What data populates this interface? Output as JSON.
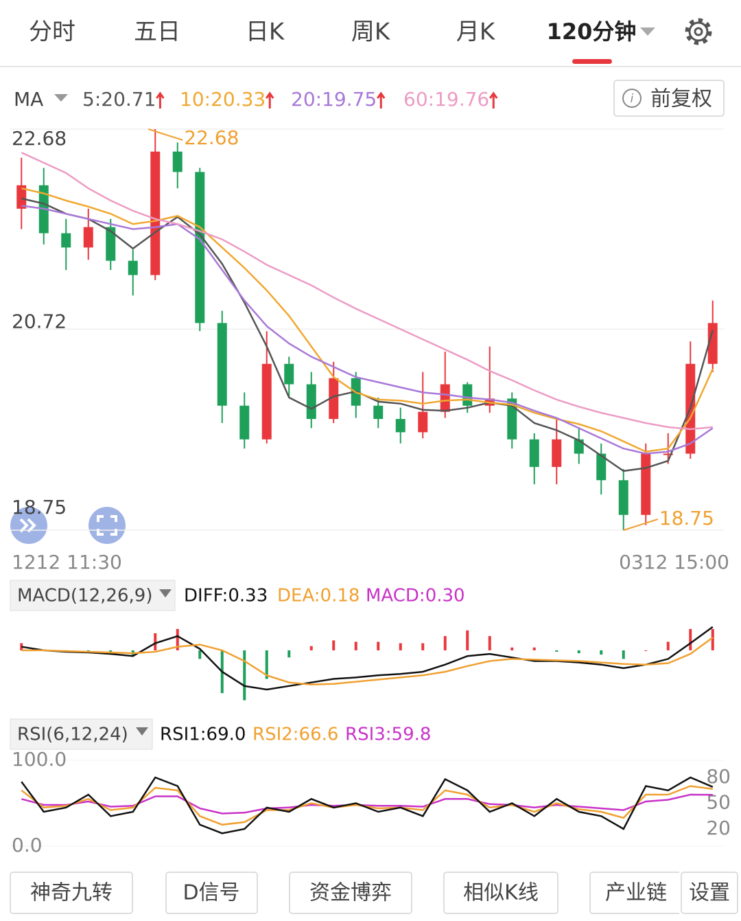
{
  "tabs": [
    "分时",
    "五日",
    "日K",
    "周K",
    "月K",
    "120分钟"
  ],
  "adjust": "前复权",
  "buttons": [
    "神奇九转",
    "D信号",
    "资金博弈",
    "相似K线",
    "产业链",
    "设置"
  ],
  "chart_data": [
    {
      "type": "candlestick",
      "selector": "MA",
      "x_labels": [
        "1212 11:30",
        "0312 15:00"
      ],
      "open": [
        21.9,
        22.13,
        21.66,
        21.52,
        21.72,
        21.39,
        21.25,
        22.46,
        22.26,
        20.78,
        19.97,
        19.64,
        20.38,
        20.18,
        19.84,
        20.24,
        19.97,
        19.84,
        19.71,
        19.91,
        20.18,
        19.97,
        20.04,
        19.64,
        19.37,
        19.64,
        19.5,
        19.24,
        18.9,
        19.5,
        19.5,
        20.38
      ],
      "high": [
        22.4,
        22.3,
        21.8,
        21.9,
        21.8,
        21.5,
        22.68,
        22.55,
        22.3,
        20.9,
        20.1,
        20.7,
        20.45,
        20.3,
        20.4,
        20.3,
        20.05,
        19.95,
        20.3,
        20.5,
        20.2,
        20.55,
        20.1,
        19.7,
        19.85,
        19.75,
        19.6,
        19.35,
        19.6,
        19.7,
        20.6,
        21.0
      ],
      "low": [
        21.7,
        21.55,
        21.3,
        21.4,
        21.3,
        21.05,
        21.2,
        22.1,
        20.7,
        19.8,
        19.55,
        19.6,
        20.05,
        19.75,
        19.8,
        19.85,
        19.75,
        19.6,
        19.65,
        19.85,
        19.9,
        19.9,
        19.55,
        19.2,
        19.2,
        19.4,
        19.1,
        18.75,
        18.8,
        19.4,
        19.45,
        20.3
      ],
      "close": [
        22.13,
        21.66,
        21.52,
        21.72,
        21.39,
        21.25,
        22.46,
        22.26,
        20.78,
        19.97,
        19.64,
        20.38,
        20.18,
        19.84,
        20.24,
        19.97,
        19.84,
        19.71,
        19.91,
        20.18,
        19.97,
        20.04,
        19.64,
        19.37,
        19.64,
        19.5,
        19.24,
        18.9,
        19.5,
        19.5,
        20.38,
        20.78
      ],
      "up_color": "#e8383d",
      "down_color": "#1ea05a",
      "series": [
        {
          "name": "5:20.71",
          "color": "#555555",
          "values": [
            22.0,
            21.95,
            21.85,
            21.8,
            21.68,
            21.51,
            21.67,
            21.82,
            21.65,
            21.36,
            20.98,
            20.55,
            20.05,
            19.94,
            20.06,
            20.11,
            20.01,
            19.99,
            19.93,
            19.92,
            19.95,
            20.0,
            19.97,
            19.8,
            19.73,
            19.63,
            19.48,
            19.33,
            19.36,
            19.43,
            19.95,
            20.71
          ]
        },
        {
          "name": "10:20.33",
          "color": "#f0a830",
          "values": [
            22.1,
            22.05,
            21.98,
            21.92,
            21.85,
            21.75,
            21.78,
            21.83,
            21.72,
            21.52,
            21.32,
            21.1,
            20.85,
            20.55,
            20.25,
            20.1,
            20.03,
            20.02,
            19.99,
            20.02,
            20.03,
            20.0,
            19.98,
            19.9,
            19.84,
            19.79,
            19.72,
            19.62,
            19.52,
            19.55,
            19.85,
            20.33
          ]
        },
        {
          "name": "20:19.75",
          "color": "#a878d8",
          "values": [
            21.93,
            21.9,
            21.85,
            21.8,
            21.75,
            21.7,
            21.72,
            21.75,
            21.6,
            21.3,
            21.0,
            20.75,
            20.58,
            20.45,
            20.35,
            20.25,
            20.2,
            20.15,
            20.1,
            20.08,
            20.05,
            20.03,
            20.0,
            19.92,
            19.85,
            19.75,
            19.65,
            19.55,
            19.5,
            19.52,
            19.6,
            19.75
          ]
        },
        {
          "name": "60:19.76",
          "color": "#ec9cc4",
          "values": [
            22.45,
            22.35,
            22.25,
            22.1,
            21.98,
            21.88,
            21.8,
            21.75,
            21.68,
            21.6,
            21.48,
            21.35,
            21.25,
            21.15,
            21.03,
            20.92,
            20.82,
            20.72,
            20.62,
            20.52,
            20.42,
            20.31,
            20.22,
            20.12,
            20.03,
            19.96,
            19.9,
            19.85,
            19.8,
            19.76,
            19.74,
            19.76
          ]
        }
      ],
      "ylim": [
        18.75,
        22.68
      ],
      "yticks": [
        22.68,
        20.72,
        18.75
      ],
      "annotations": [
        "22.68",
        "18.75"
      ],
      "annotation_color": "#f0a030"
    },
    {
      "type": "macd",
      "selector": "MACD(12,26,9)",
      "series": [
        {
          "name": "DIFF:0.33",
          "color": "#111111",
          "values": [
            0.05,
            0.0,
            -0.02,
            -0.03,
            -0.05,
            -0.08,
            0.1,
            0.2,
            0.02,
            -0.3,
            -0.5,
            -0.55,
            -0.5,
            -0.45,
            -0.4,
            -0.38,
            -0.35,
            -0.33,
            -0.3,
            -0.2,
            -0.08,
            -0.05,
            -0.1,
            -0.15,
            -0.15,
            -0.17,
            -0.2,
            -0.25,
            -0.2,
            -0.12,
            0.1,
            0.33
          ]
        },
        {
          "name": "DEA:0.18",
          "color": "#f0a030",
          "values": [
            0.0,
            0.0,
            -0.01,
            -0.02,
            -0.03,
            -0.04,
            -0.02,
            0.05,
            0.08,
            0.0,
            -0.15,
            -0.35,
            -0.45,
            -0.48,
            -0.47,
            -0.44,
            -0.41,
            -0.38,
            -0.35,
            -0.3,
            -0.22,
            -0.15,
            -0.12,
            -0.13,
            -0.14,
            -0.15,
            -0.17,
            -0.19,
            -0.2,
            -0.18,
            -0.05,
            0.18
          ]
        }
      ],
      "histogram": {
        "name": "MACD:0.30",
        "color": "#c832c8",
        "values": [
          0.1,
          0.0,
          -0.02,
          -0.02,
          -0.04,
          -0.08,
          0.24,
          0.3,
          -0.12,
          -0.6,
          -0.7,
          -0.4,
          -0.1,
          0.06,
          0.14,
          0.12,
          0.12,
          0.1,
          0.1,
          0.2,
          0.28,
          0.2,
          0.04,
          0.04,
          -0.02,
          -0.04,
          -0.06,
          -0.12,
          0.0,
          0.12,
          0.3,
          0.3
        ]
      },
      "ylim": [
        -0.8,
        0.5
      ]
    },
    {
      "type": "line",
      "selector": "RSI(6,12,24)",
      "series": [
        {
          "name": "RSI1:69.0",
          "color": "#111111",
          "values": [
            75,
            40,
            45,
            60,
            35,
            40,
            80,
            70,
            25,
            15,
            20,
            45,
            40,
            55,
            45,
            50,
            40,
            45,
            35,
            78,
            65,
            40,
            50,
            35,
            55,
            40,
            35,
            20,
            70,
            65,
            80,
            69.0
          ]
        },
        {
          "name": "RSI2:66.6",
          "color": "#f0a030",
          "values": [
            65,
            45,
            47,
            55,
            42,
            45,
            68,
            65,
            35,
            25,
            28,
            42,
            42,
            50,
            45,
            48,
            44,
            45,
            42,
            65,
            60,
            45,
            48,
            40,
            50,
            43,
            40,
            33,
            60,
            60,
            70,
            66.6
          ]
        },
        {
          "name": "RSI3:59.8",
          "color": "#c832c8",
          "values": [
            55,
            48,
            48,
            52,
            46,
            47,
            58,
            58,
            44,
            38,
            39,
            44,
            45,
            48,
            47,
            48,
            47,
            47,
            46,
            55,
            55,
            49,
            48,
            45,
            48,
            46,
            44,
            42,
            52,
            54,
            60,
            59.8
          ]
        }
      ],
      "ylim": [
        0,
        100
      ],
      "yticks": [
        {
          "value": 100,
          "label": "100.0"
        },
        {
          "value": 0,
          "label": "0.0"
        }
      ],
      "y2lim": [
        0,
        100
      ],
      "y2ticks": [
        80,
        50,
        20
      ]
    }
  ]
}
